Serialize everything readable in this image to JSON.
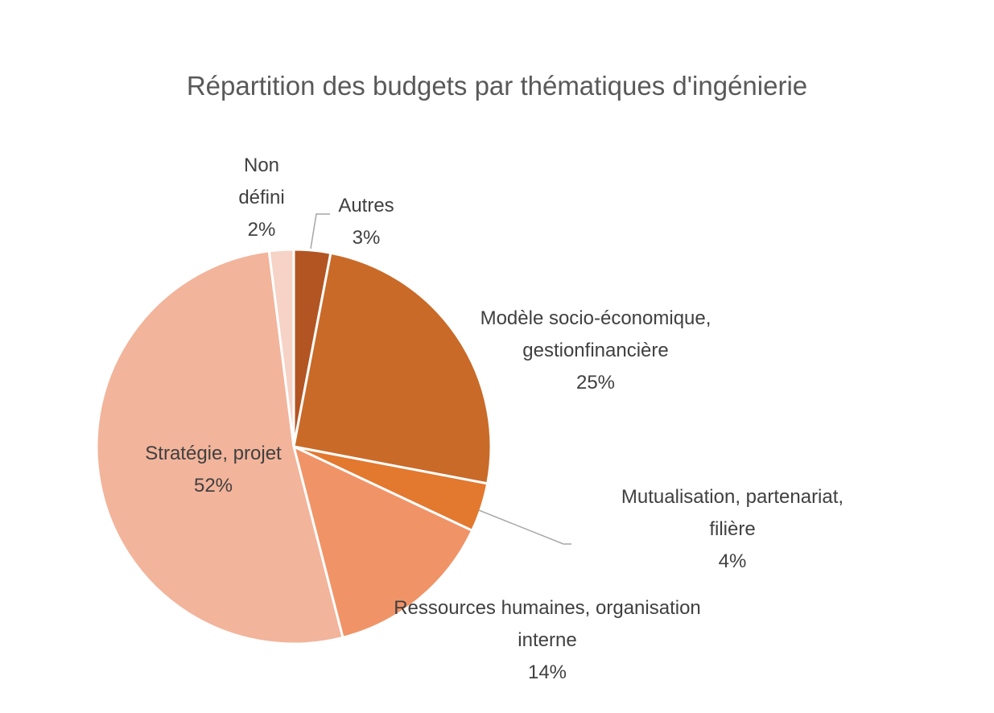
{
  "chart_data": {
    "type": "pie",
    "title": "Répartition des budgets par thématiques d'ingénierie",
    "slices": [
      {
        "name": "Autres",
        "value": 3,
        "value_label": "3%",
        "label_lines": [
          "Autres"
        ],
        "color": "#b35522"
      },
      {
        "name": "Modèle socio-économique, gestionfinancière",
        "value": 25,
        "value_label": "25%",
        "label_lines": [
          "Modèle socio-économique,",
          "gestionfinancière"
        ],
        "color": "#c96a28"
      },
      {
        "name": "Mutualisation, partenariat, filière",
        "value": 4,
        "value_label": "4%",
        "label_lines": [
          "Mutualisation, partenariat,",
          "filière"
        ],
        "color": "#e3782f"
      },
      {
        "name": "Ressources humaines, organisation interne",
        "value": 14,
        "value_label": "14%",
        "label_lines": [
          "Ressources humaines, organisation",
          "interne"
        ],
        "color": "#f09468"
      },
      {
        "name": "Stratégie, projet",
        "value": 52,
        "value_label": "52%",
        "label_lines": [
          "Stratégie, projet"
        ],
        "color": "#f2b49b"
      },
      {
        "name": "Non défini",
        "value": 2,
        "value_label": "2%",
        "label_lines": [
          "Non",
          "défini"
        ],
        "color": "#f6d3c6"
      }
    ],
    "legend": "none"
  }
}
